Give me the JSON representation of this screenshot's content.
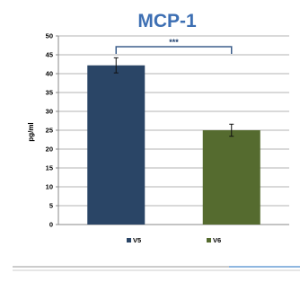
{
  "chart_data": {
    "type": "bar",
    "title": "MCP-1",
    "ylabel": "pg/ml",
    "xlabel": "",
    "categories": [
      "V5",
      "V6"
    ],
    "values": [
      42.2,
      25.0
    ],
    "errors": [
      2.0,
      1.6
    ],
    "colors": [
      "#2a4566",
      "#556b2f"
    ],
    "ylim": [
      0,
      50
    ],
    "yticks": [
      "0",
      "5",
      "10",
      "15",
      "20",
      "25",
      "30",
      "35",
      "40",
      "45",
      "50"
    ],
    "grid": true,
    "legend": {
      "placement": "bottom",
      "items": [
        "V5",
        "V6"
      ]
    },
    "annotation": {
      "text": "***",
      "between": [
        "V5",
        "V6"
      ]
    }
  }
}
